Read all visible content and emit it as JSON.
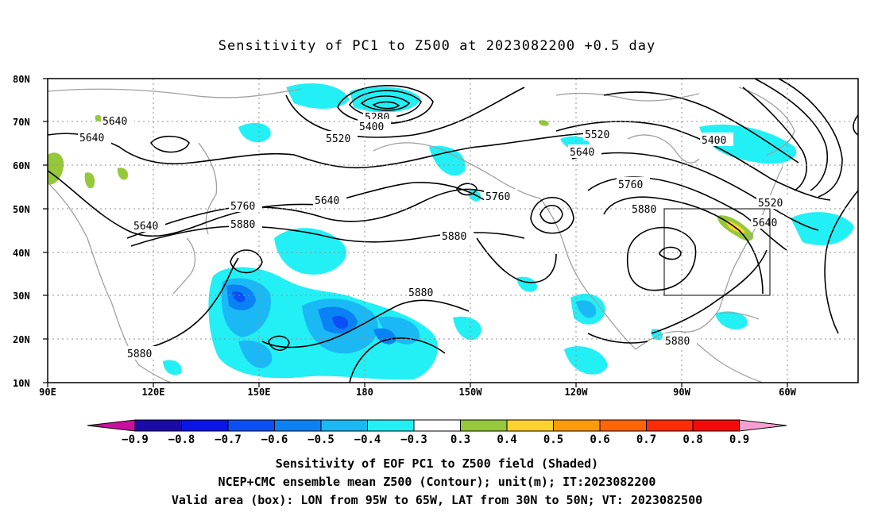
{
  "title": "Sensitivity of PC1 to Z500 at 2023082200 +0.5 day",
  "axes": {
    "y_ticks": [
      "80N",
      "70N",
      "60N",
      "50N",
      "40N",
      "30N",
      "20N",
      "10N"
    ],
    "x_ticks": [
      "90E",
      "120E",
      "150E",
      "180",
      "150W",
      "120W",
      "90W",
      "60W"
    ]
  },
  "contour_labels": {
    "c5640a": "5640",
    "c5640b": "5640",
    "c5640c": "5640",
    "c5640d": "5640",
    "c5640e": "5640",
    "c5640f": "5640",
    "c5280": "5280",
    "c5400a": "5400",
    "c5400b": "5400",
    "c5520a": "5520",
    "c5520b": "5520",
    "c5520c": "5520",
    "c5760a": "5760",
    "c5760b": "5760",
    "c5760c": "5760",
    "c5880a": "5880",
    "c5880b": "5880",
    "c5880c": "5880",
    "c5880d": "5880",
    "c5880e": "5880",
    "c5880f": "5880"
  },
  "colorbar": {
    "labels": [
      "−0.9",
      "−0.8",
      "−0.7",
      "−0.6",
      "−0.5",
      "−0.4",
      "−0.3",
      "0.3",
      "0.4",
      "0.5",
      "0.6",
      "0.7",
      "0.8",
      "0.9"
    ],
    "colors": {
      "lt_min": "#c8119e",
      "bins": [
        "#1a0aa8",
        "#0a14e6",
        "#0a50f5",
        "#0a82f5",
        "#1ab9f5",
        "#23f0f5",
        "#ffffff",
        "#96c83c",
        "#ffd232",
        "#ff9b0a",
        "#ff6405",
        "#ff2d05",
        "#f50a0a"
      ],
      "gt_max": "#f5a0d2"
    }
  },
  "captions": {
    "line1": "Sensitivity of EOF PC1 to Z500 field (Shaded)",
    "line2": "NCEP+CMC ensemble mean Z500 (Contour); unit(m); IT:2023082200",
    "line3": "Valid area (box): LON from 95W to 65W, LAT from 30N to 50N; VT: 2023082500"
  },
  "valid_area": {
    "lon_from": "95W",
    "lon_to": "65W",
    "lat_from": "30N",
    "lat_to": "50N"
  },
  "palette": {
    "coast": "#a0a0a0",
    "contour": "#000000",
    "grid": "#909090"
  }
}
